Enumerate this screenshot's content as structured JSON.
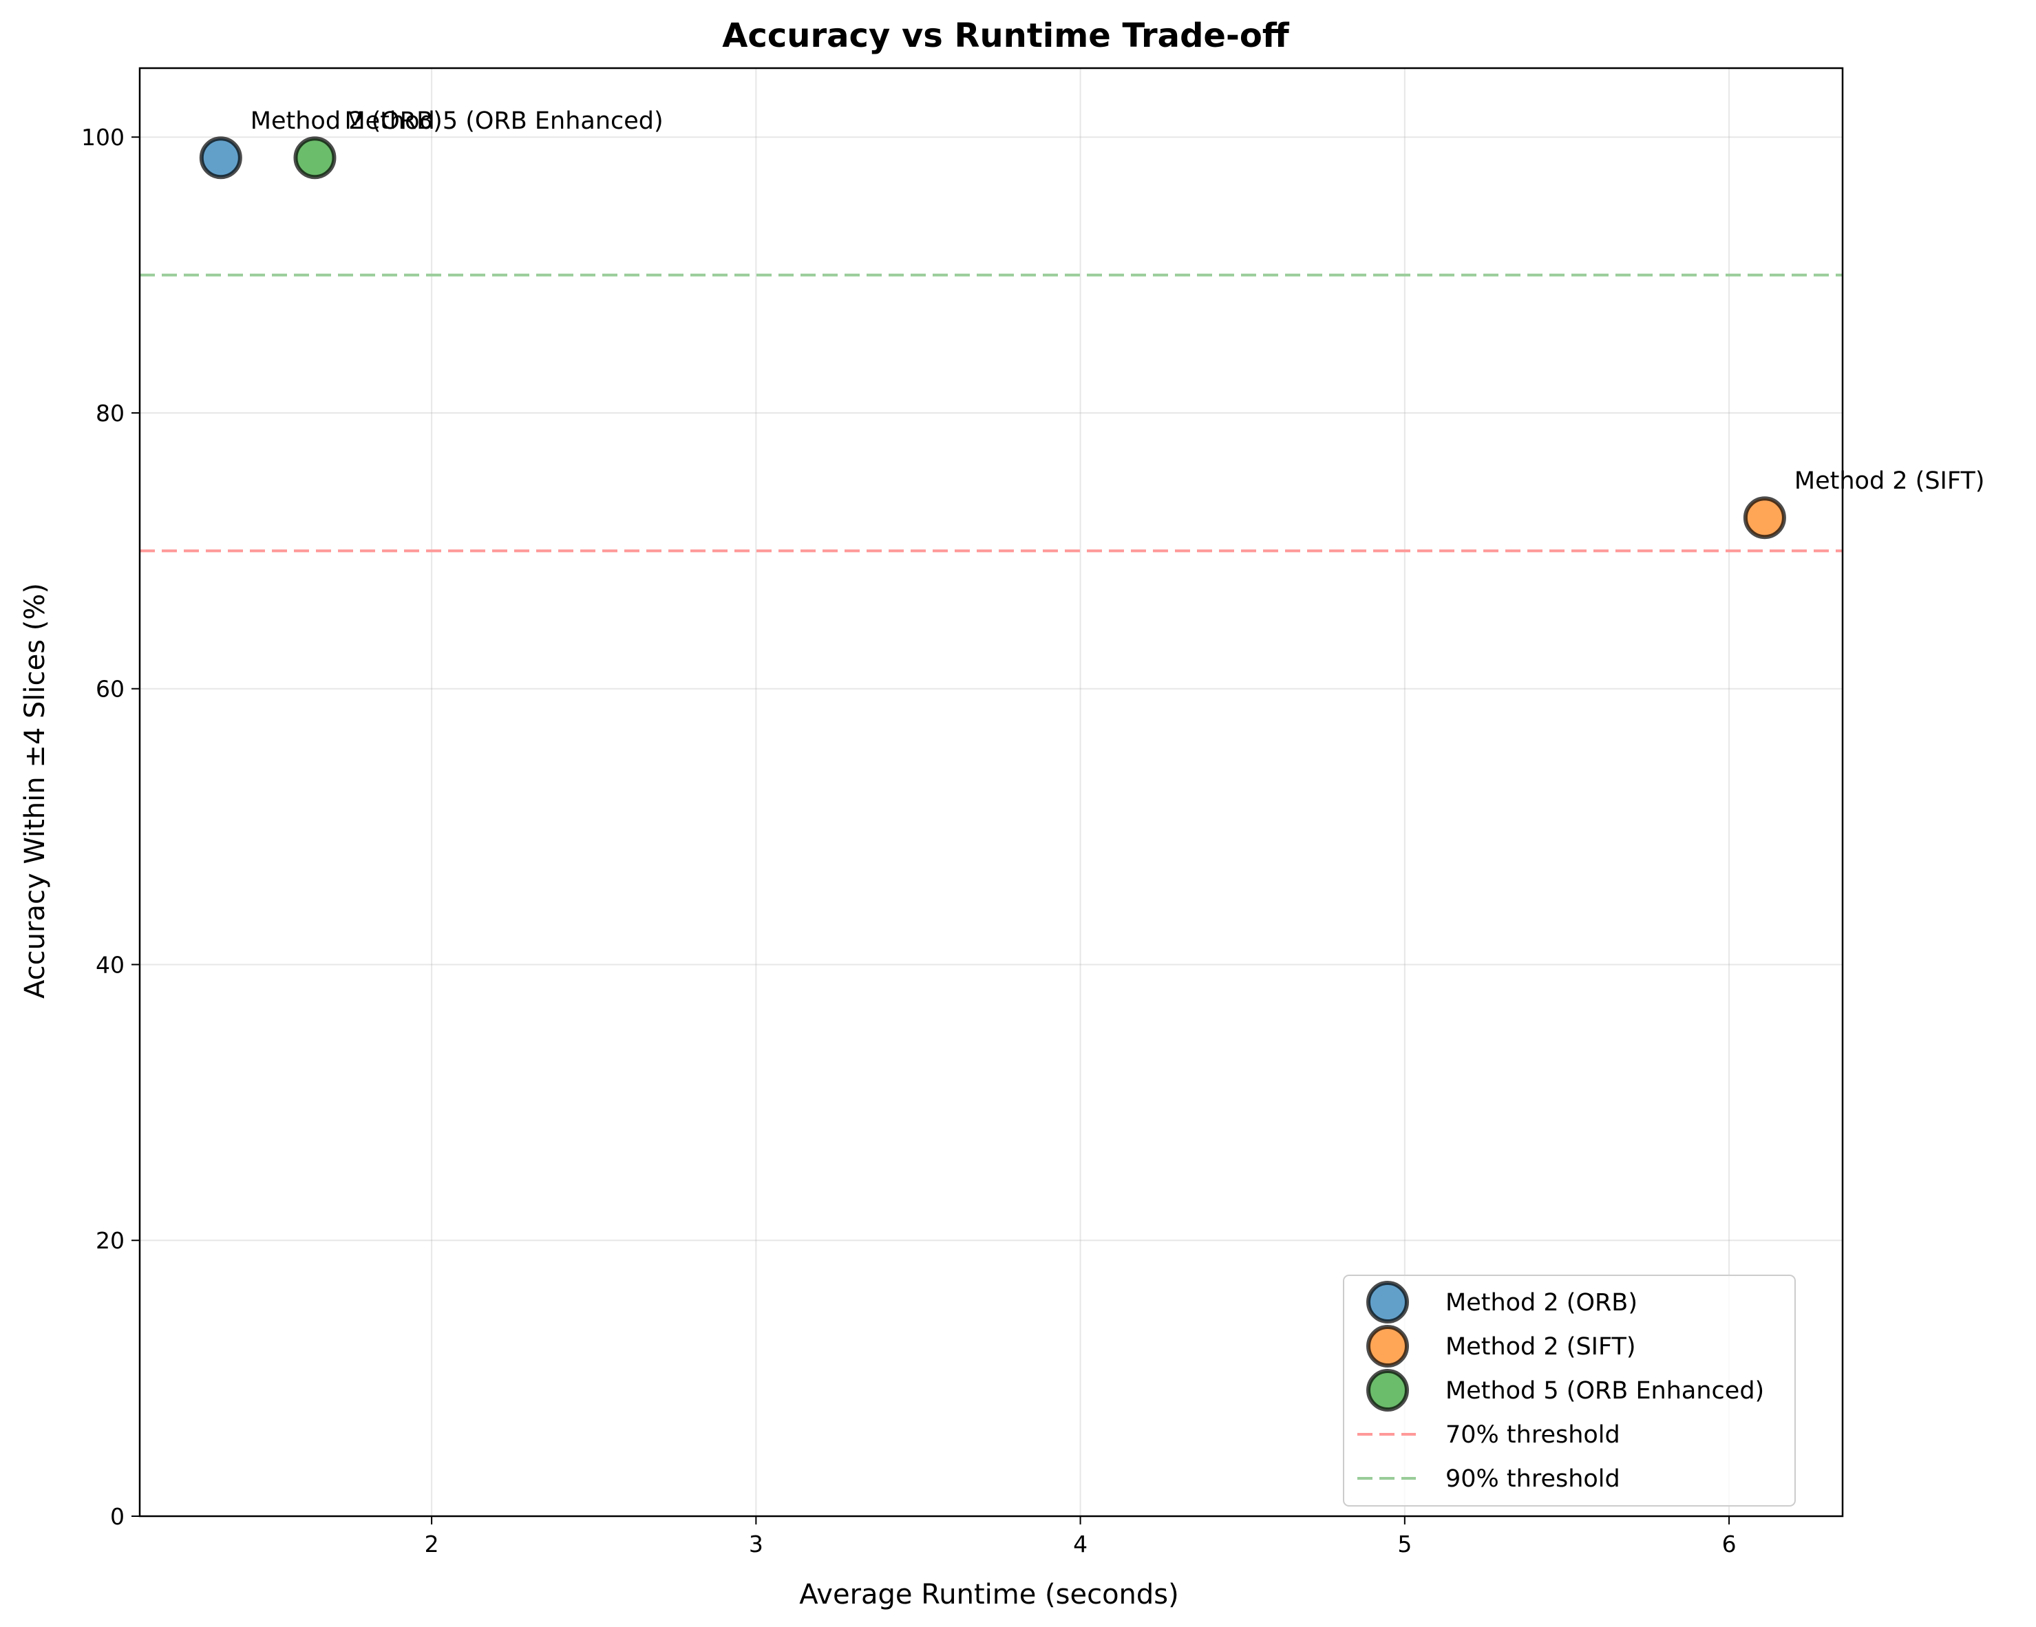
{
  "chart_data": {
    "type": "scatter",
    "title": "Accuracy vs Runtime Trade-off",
    "xlabel": "Average Runtime (seconds)",
    "ylabel": "Accuracy Within ±4 Slices (%)",
    "xlim": [
      1.1,
      6.35
    ],
    "ylim": [
      0,
      105
    ],
    "xticks": [
      2,
      3,
      4,
      5,
      6
    ],
    "yticks": [
      0,
      20,
      40,
      60,
      80,
      100
    ],
    "grid": true,
    "legend_position": "lower right",
    "series": [
      {
        "name": "Method 2 (ORB)",
        "x": 1.35,
        "y": 98.5,
        "color": "#1f77b4",
        "annotation": "Method 2 (ORB)"
      },
      {
        "name": "Method 2 (SIFT)",
        "x": 6.11,
        "y": 72.4,
        "color": "#ff7f0e",
        "annotation": "Method 2 (SIFT)"
      },
      {
        "name": "Method 5 (ORB Enhanced)",
        "x": 1.64,
        "y": 98.5,
        "color": "#2ca02c",
        "annotation": "Method 5 (ORB Enhanced)"
      }
    ],
    "thresholds": [
      {
        "name": "70% threshold",
        "y": 70,
        "color": "#ff9999"
      },
      {
        "name": "90% threshold",
        "y": 90,
        "color": "#99cc99"
      }
    ]
  }
}
